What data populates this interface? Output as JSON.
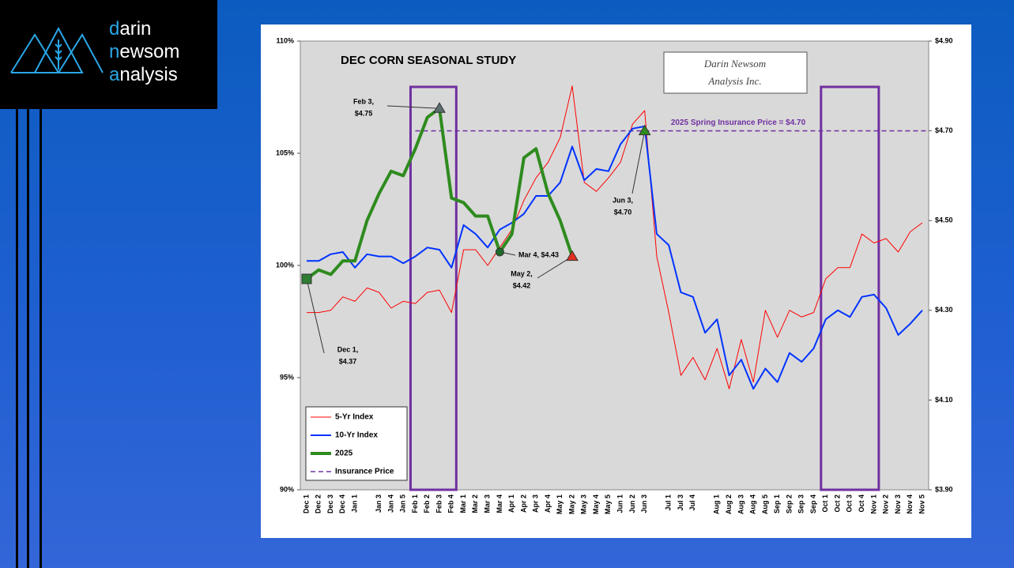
{
  "logo": {
    "lines": [
      {
        "accent": "d",
        "rest": "arin"
      },
      {
        "accent": "n",
        "rest": "ewsom"
      },
      {
        "accent": "a",
        "rest": "nalysis"
      }
    ]
  },
  "chart_data": {
    "type": "line",
    "title": "DEC CORN SEASONAL STUDY",
    "watermark": [
      "Darin Newsom",
      "Analysis Inc."
    ],
    "categories": [
      "Dec 1",
      "Dec 2",
      "Dec 3",
      "Dec 4",
      "Jan 1",
      null,
      "Jan 3",
      "Jan 4",
      "Jan 5",
      "Feb 1",
      "Feb 2",
      "Feb 3",
      "Feb 4",
      "Mar 1",
      "Mar 2",
      "Mar 3",
      "Mar 4",
      "Apr 1",
      "Apr 2",
      "Apr 3",
      "Apr 4",
      "May 1",
      "May 2",
      "May 3",
      "May 4",
      "May 5",
      "Jun 1",
      "Jun 2",
      "Jun 3",
      null,
      "Jul 1",
      "Jul 3",
      "Jul 4",
      null,
      "Aug 1",
      "Aug 2",
      "Aug 3",
      "Aug 4",
      "Aug 5",
      "Sep 1",
      "Sep 2",
      "Sep 3",
      "Sep 4",
      "Oct 1",
      "Oct 2",
      "Oct 3",
      "Oct 4",
      "Nov 1",
      "Nov 2",
      "Nov 3",
      "Nov 4",
      "Nov 5"
    ],
    "series": [
      {
        "name": "5-Yr Index",
        "color": "#ff0000",
        "width": 1,
        "axis": "y",
        "values": [
          97.9,
          97.9,
          98.0,
          98.6,
          98.4,
          99.0,
          98.8,
          98.1,
          98.4,
          98.3,
          98.8,
          98.9,
          97.9,
          100.7,
          100.7,
          100.0,
          100.8,
          101.6,
          102.9,
          103.9,
          104.6,
          105.7,
          108.0,
          103.7,
          103.3,
          103.9,
          104.6,
          106.3,
          106.9,
          100.4,
          97.9,
          95.1,
          95.9,
          94.9,
          96.3,
          94.5,
          96.7,
          94.8,
          98.0,
          96.8,
          98.0,
          97.7,
          97.9,
          99.4,
          99.9,
          99.9,
          101.4,
          101.0,
          101.2,
          100.6,
          101.5,
          101.9
        ]
      },
      {
        "name": "10-Yr Index",
        "color": "#0033ff",
        "width": 2,
        "axis": "y",
        "values": [
          100.2,
          100.2,
          100.5,
          100.6,
          99.9,
          100.5,
          100.4,
          100.4,
          100.1,
          100.4,
          100.8,
          100.7,
          99.9,
          101.8,
          101.4,
          100.8,
          101.6,
          101.9,
          102.3,
          103.1,
          103.1,
          103.7,
          105.3,
          103.8,
          104.3,
          104.2,
          105.4,
          106.1,
          106.2,
          101.4,
          100.9,
          98.8,
          98.6,
          97.0,
          97.6,
          95.1,
          95.8,
          94.5,
          95.4,
          94.8,
          96.1,
          95.7,
          96.3,
          97.6,
          98.0,
          97.7,
          98.6,
          98.7,
          98.1,
          96.9,
          97.4,
          98.0
        ]
      },
      {
        "name": "2025",
        "color": "#2e8b1e",
        "width": 4,
        "axis": "y2",
        "values": [
          4.37,
          4.39,
          4.38,
          4.41,
          4.41,
          4.5,
          4.56,
          4.61,
          4.6,
          4.66,
          4.73,
          4.75,
          4.55,
          4.54,
          4.51,
          4.51,
          4.43,
          4.47,
          4.64,
          4.66,
          4.56,
          4.5,
          4.42,
          null,
          null,
          null,
          null,
          null,
          null,
          null,
          null,
          null,
          null,
          null,
          null,
          null,
          null,
          null,
          null,
          null,
          null,
          null,
          null,
          null,
          null,
          null,
          null,
          null,
          null,
          null,
          null,
          null
        ]
      }
    ],
    "insurance": {
      "value": 4.7,
      "label": "2025 Spring Insurance Price = $4.70",
      "legend": "Insurance Price",
      "color": "#7030a0",
      "start": "Feb 1"
    },
    "highlight_ranges": [
      [
        "Feb 1",
        "Feb 4"
      ],
      [
        "Oct 1",
        "Nov 1"
      ]
    ],
    "highlight_color": "#7030a0",
    "annotations": [
      {
        "category": "Dec 1",
        "value": 4.37,
        "label": [
          "Dec 1,",
          "$4.37"
        ],
        "marker": "square",
        "color": "#2e7d32"
      },
      {
        "category": "Feb 3",
        "value": 4.75,
        "label": [
          "Feb 3,",
          "$4.75"
        ],
        "marker": "triangle",
        "color": "#5a6e6e"
      },
      {
        "category": "Mar 4",
        "value": 4.43,
        "label": [
          "Mar 4, $4.43"
        ],
        "marker": "circle",
        "color": "#1e6b2a"
      },
      {
        "category": "May 2",
        "value": 4.42,
        "label": [
          "May 2,",
          "$4.42"
        ],
        "marker": "triangle",
        "color": "#e03020"
      },
      {
        "category": "Jun 3",
        "value": 4.7,
        "label": [
          "Jun 3,",
          "$4.70"
        ],
        "marker": "triangle",
        "color": "#2e8b1e"
      }
    ],
    "ylim": [
      90,
      110
    ],
    "yticks": [
      {
        "value": 90,
        "label": "90%"
      },
      {
        "value": 95,
        "label": "95%"
      },
      {
        "value": 100,
        "label": "100%"
      },
      {
        "value": 105,
        "label": "105%"
      },
      {
        "value": 110,
        "label": "110%"
      }
    ],
    "y2lim": [
      3.9,
      4.9
    ],
    "y2ticks": [
      {
        "value": 3.9,
        "label": "$3.90"
      },
      {
        "value": 4.1,
        "label": "$4.10"
      },
      {
        "value": 4.3,
        "label": "$4.30"
      },
      {
        "value": 4.5,
        "label": "$4.50"
      },
      {
        "value": 4.7,
        "label": "$4.70"
      },
      {
        "value": 4.9,
        "label": "$4.90"
      }
    ],
    "legend": "lower left"
  }
}
